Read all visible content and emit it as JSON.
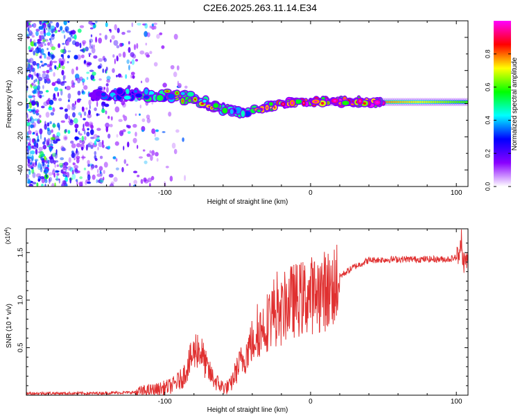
{
  "title": "C2E6.2025.263.11.14.E34",
  "chart_data": [
    {
      "type": "heatmap",
      "title": "C2E6.2025.263.11.14.E34",
      "xlabel": "Height of straight line (km)",
      "ylabel": "Frequency (Hz)",
      "xlim": [
        -195,
        108
      ],
      "ylim": [
        -50,
        50
      ],
      "xticks": [
        -100,
        0,
        100
      ],
      "yticks": [
        -40,
        -20,
        0,
        20,
        40
      ],
      "colorbar": {
        "label": "Normalized spectral amplitude",
        "range": [
          0,
          1
        ],
        "ticks": [
          "0.0",
          "0.2",
          "0.4",
          "0.6",
          "0.8"
        ],
        "colors": [
          "#ffffff",
          "#8a00ff",
          "#0000ff",
          "#00ffff",
          "#00ff00",
          "#ffff00",
          "#ff0000",
          "#ff00ff"
        ]
      },
      "frequency_ridge": {
        "x": [
          -195,
          -160,
          -130,
          -110,
          -95,
          -80,
          -70,
          -60,
          -50,
          -45,
          -40,
          -30,
          -20,
          -10,
          0,
          20,
          40,
          60,
          80,
          108
        ],
        "y": [
          5,
          5,
          5,
          5,
          5,
          3,
          0,
          -3,
          -5,
          -5,
          -4,
          -2,
          0,
          1,
          1,
          1,
          1,
          1,
          1,
          1
        ],
        "amplitude": [
          0.1,
          0.15,
          0.35,
          0.45,
          0.55,
          0.6,
          0.55,
          0.45,
          0.4,
          0.45,
          0.55,
          0.7,
          0.8,
          0.85,
          0.9,
          0.85,
          0.8,
          0.75,
          0.7,
          0.6
        ]
      },
      "noise_region_x": [
        -195,
        -110
      ]
    },
    {
      "type": "line",
      "xlabel": "Height of straight line (km)",
      "ylabel": "SNR (10 * v/v)",
      "yscale_label": "(x10",
      "yscale_exp": "4",
      "yscale_close": ")",
      "xlim": [
        -195,
        108
      ],
      "ylim": [
        0,
        1.75
      ],
      "xticks": [
        -100,
        0,
        100
      ],
      "yticks": [
        "0.5",
        "1.0",
        "1.5"
      ],
      "series": [
        {
          "name": "SNR",
          "color": "#e03030",
          "x": [
            -195,
            -150,
            -120,
            -105,
            -95,
            -88,
            -82,
            -78,
            -75,
            -72,
            -70,
            -66,
            -62,
            -58,
            -55,
            -52,
            -48,
            -45,
            -42,
            -38,
            -35,
            -32,
            -28,
            -25,
            -22,
            -18,
            -15,
            -10,
            -5,
            0,
            5,
            10,
            15,
            20,
            30,
            40,
            60,
            80,
            95,
            100,
            103,
            105,
            108
          ],
          "y": [
            0.02,
            0.02,
            0.03,
            0.06,
            0.1,
            0.18,
            0.38,
            0.5,
            0.45,
            0.32,
            0.25,
            0.16,
            0.1,
            0.08,
            0.1,
            0.22,
            0.35,
            0.4,
            0.52,
            0.62,
            0.68,
            0.72,
            0.82,
            0.9,
            0.8,
            0.92,
            0.98,
            1.0,
            1.02,
            1.05,
            1.08,
            1.1,
            1.12,
            1.25,
            1.35,
            1.42,
            1.43,
            1.43,
            1.43,
            1.45,
            1.55,
            1.4,
            1.42
          ]
        }
      ]
    }
  ]
}
